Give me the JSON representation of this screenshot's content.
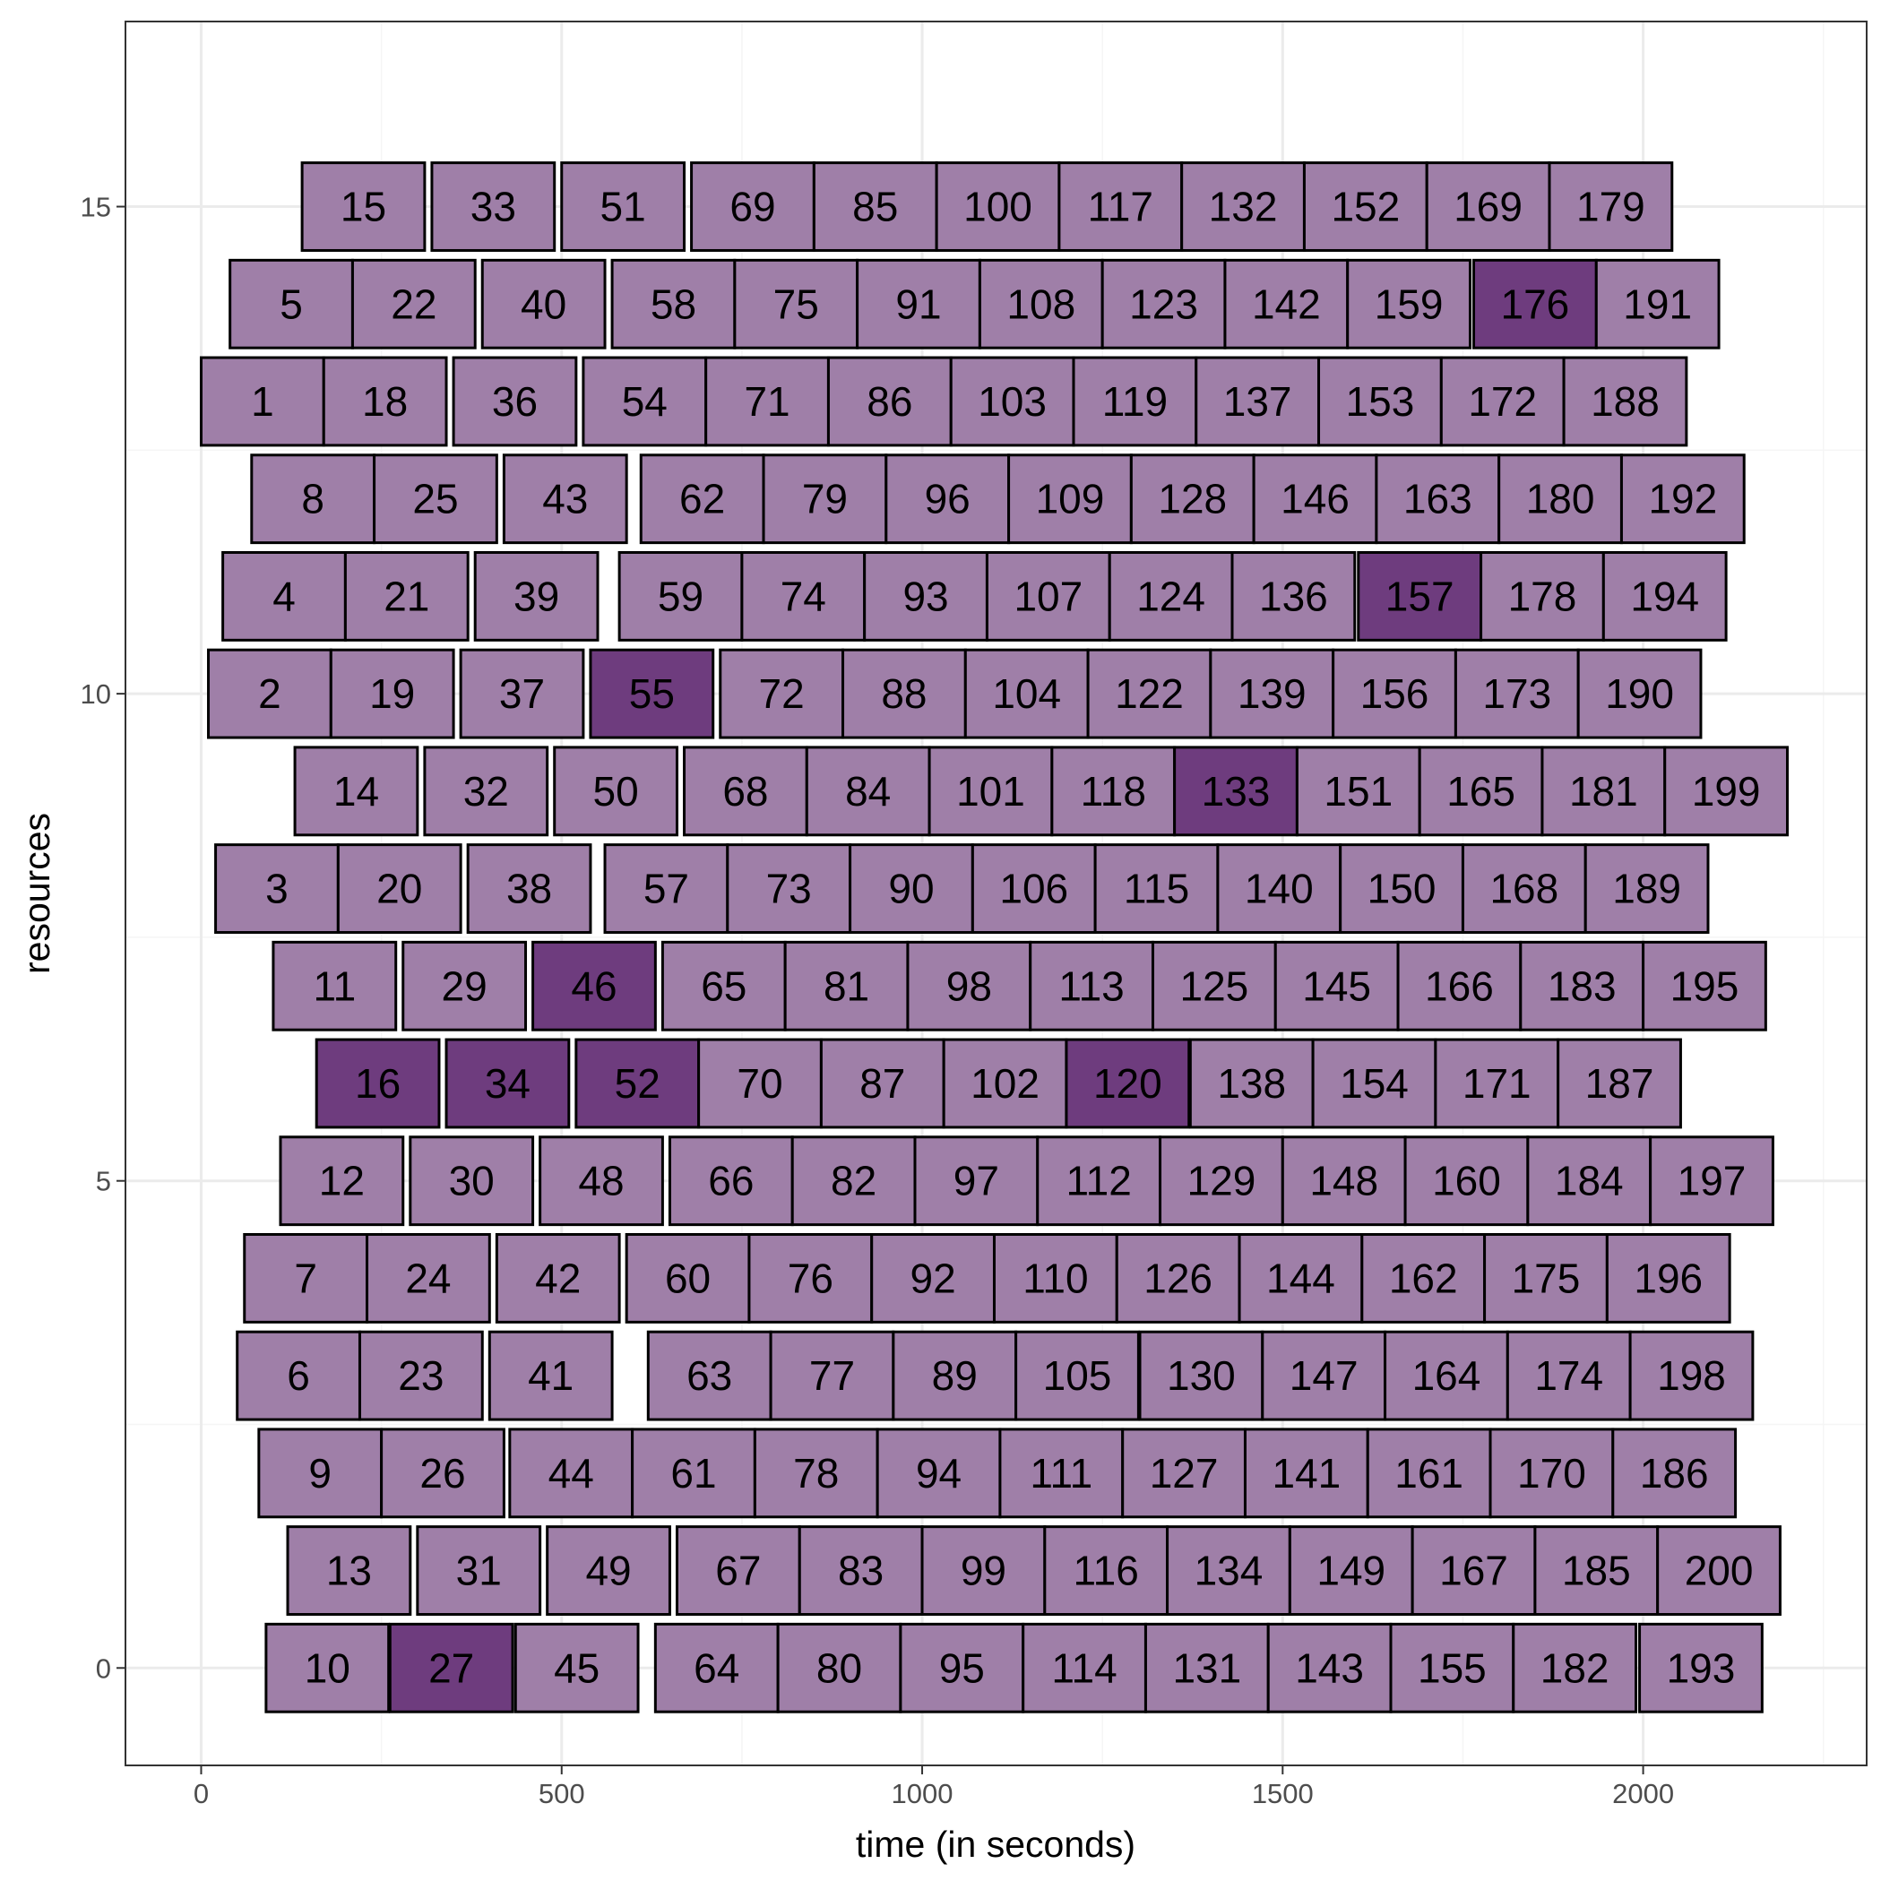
{
  "chart_data": {
    "type": "gantt",
    "xlabel": "time (in seconds)",
    "ylabel": "resources",
    "xlim": [
      -105,
      2310
    ],
    "ylim": [
      -1,
      16.9
    ],
    "xticks": [
      0,
      500,
      1000,
      1500,
      2000
    ],
    "yticks": [
      0,
      5,
      10,
      15
    ],
    "grid": true,
    "task_duration": 170,
    "colors": {
      "normal": "#9f7fa8",
      "highlight": "#6e3c7e",
      "border": "#000000",
      "panel_border": "#333333",
      "grid_major": "#ebebeb",
      "grid_minor": "#f5f5f5"
    },
    "tasks": [
      {
        "resource": 0,
        "id": 10,
        "start": 90
      },
      {
        "resource": 0,
        "id": 27,
        "start": 262,
        "highlight": true
      },
      {
        "resource": 0,
        "id": 45,
        "start": 436
      },
      {
        "resource": 0,
        "id": 64,
        "start": 630
      },
      {
        "resource": 0,
        "id": 80,
        "start": 800
      },
      {
        "resource": 0,
        "id": 95,
        "start": 970
      },
      {
        "resource": 0,
        "id": 114,
        "start": 1140
      },
      {
        "resource": 0,
        "id": 131,
        "start": 1310
      },
      {
        "resource": 0,
        "id": 143,
        "start": 1480
      },
      {
        "resource": 0,
        "id": 155,
        "start": 1650
      },
      {
        "resource": 0,
        "id": 182,
        "start": 1820
      },
      {
        "resource": 0,
        "id": 193,
        "start": 1995
      },
      {
        "resource": 1,
        "id": 13,
        "start": 120
      },
      {
        "resource": 1,
        "id": 31,
        "start": 300
      },
      {
        "resource": 1,
        "id": 49,
        "start": 480
      },
      {
        "resource": 1,
        "id": 67,
        "start": 660
      },
      {
        "resource": 1,
        "id": 83,
        "start": 830
      },
      {
        "resource": 1,
        "id": 99,
        "start": 1000
      },
      {
        "resource": 1,
        "id": 116,
        "start": 1170
      },
      {
        "resource": 1,
        "id": 134,
        "start": 1340
      },
      {
        "resource": 1,
        "id": 149,
        "start": 1510
      },
      {
        "resource": 1,
        "id": 167,
        "start": 1680
      },
      {
        "resource": 1,
        "id": 185,
        "start": 1850
      },
      {
        "resource": 1,
        "id": 200,
        "start": 2020
      },
      {
        "resource": 2,
        "id": 9,
        "start": 80
      },
      {
        "resource": 2,
        "id": 26,
        "start": 250
      },
      {
        "resource": 2,
        "id": 44,
        "start": 428
      },
      {
        "resource": 2,
        "id": 61,
        "start": 598
      },
      {
        "resource": 2,
        "id": 78,
        "start": 768
      },
      {
        "resource": 2,
        "id": 94,
        "start": 938
      },
      {
        "resource": 2,
        "id": 111,
        "start": 1108
      },
      {
        "resource": 2,
        "id": 127,
        "start": 1278
      },
      {
        "resource": 2,
        "id": 141,
        "start": 1448
      },
      {
        "resource": 2,
        "id": 161,
        "start": 1618
      },
      {
        "resource": 2,
        "id": 170,
        "start": 1788
      },
      {
        "resource": 2,
        "id": 186,
        "start": 1958
      },
      {
        "resource": 3,
        "id": 6,
        "start": 50
      },
      {
        "resource": 3,
        "id": 23,
        "start": 220
      },
      {
        "resource": 3,
        "id": 41,
        "start": 400
      },
      {
        "resource": 3,
        "id": 63,
        "start": 620
      },
      {
        "resource": 3,
        "id": 77,
        "start": 790
      },
      {
        "resource": 3,
        "id": 89,
        "start": 960
      },
      {
        "resource": 3,
        "id": 105,
        "start": 1130
      },
      {
        "resource": 3,
        "id": 130,
        "start": 1302
      },
      {
        "resource": 3,
        "id": 147,
        "start": 1472
      },
      {
        "resource": 3,
        "id": 164,
        "start": 1642
      },
      {
        "resource": 3,
        "id": 174,
        "start": 1812
      },
      {
        "resource": 3,
        "id": 198,
        "start": 1982
      },
      {
        "resource": 4,
        "id": 7,
        "start": 60
      },
      {
        "resource": 4,
        "id": 24,
        "start": 230
      },
      {
        "resource": 4,
        "id": 42,
        "start": 410
      },
      {
        "resource": 4,
        "id": 60,
        "start": 590
      },
      {
        "resource": 4,
        "id": 76,
        "start": 760
      },
      {
        "resource": 4,
        "id": 92,
        "start": 930
      },
      {
        "resource": 4,
        "id": 110,
        "start": 1100
      },
      {
        "resource": 4,
        "id": 126,
        "start": 1270
      },
      {
        "resource": 4,
        "id": 144,
        "start": 1440
      },
      {
        "resource": 4,
        "id": 162,
        "start": 1610
      },
      {
        "resource": 4,
        "id": 175,
        "start": 1780
      },
      {
        "resource": 4,
        "id": 196,
        "start": 1950
      },
      {
        "resource": 5,
        "id": 12,
        "start": 110
      },
      {
        "resource": 5,
        "id": 30,
        "start": 290
      },
      {
        "resource": 5,
        "id": 48,
        "start": 470
      },
      {
        "resource": 5,
        "id": 66,
        "start": 650
      },
      {
        "resource": 5,
        "id": 82,
        "start": 820
      },
      {
        "resource": 5,
        "id": 97,
        "start": 990
      },
      {
        "resource": 5,
        "id": 112,
        "start": 1160
      },
      {
        "resource": 5,
        "id": 129,
        "start": 1330
      },
      {
        "resource": 5,
        "id": 148,
        "start": 1500
      },
      {
        "resource": 5,
        "id": 160,
        "start": 1670
      },
      {
        "resource": 5,
        "id": 184,
        "start": 1840
      },
      {
        "resource": 5,
        "id": 197,
        "start": 2010
      },
      {
        "resource": 6,
        "id": 16,
        "start": 160,
        "highlight": true
      },
      {
        "resource": 6,
        "id": 34,
        "start": 340,
        "highlight": true
      },
      {
        "resource": 6,
        "id": 52,
        "start": 520,
        "highlight": true
      },
      {
        "resource": 6,
        "id": 70,
        "start": 690
      },
      {
        "resource": 6,
        "id": 87,
        "start": 860
      },
      {
        "resource": 6,
        "id": 102,
        "start": 1030
      },
      {
        "resource": 6,
        "id": 120,
        "start": 1200,
        "highlight": true
      },
      {
        "resource": 6,
        "id": 138,
        "start": 1372
      },
      {
        "resource": 6,
        "id": 154,
        "start": 1542
      },
      {
        "resource": 6,
        "id": 171,
        "start": 1712
      },
      {
        "resource": 6,
        "id": 187,
        "start": 1882
      },
      {
        "resource": 7,
        "id": 11,
        "start": 100
      },
      {
        "resource": 7,
        "id": 29,
        "start": 280
      },
      {
        "resource": 7,
        "id": 46,
        "start": 460,
        "highlight": true
      },
      {
        "resource": 7,
        "id": 65,
        "start": 640
      },
      {
        "resource": 7,
        "id": 81,
        "start": 810
      },
      {
        "resource": 7,
        "id": 98,
        "start": 980
      },
      {
        "resource": 7,
        "id": 113,
        "start": 1150
      },
      {
        "resource": 7,
        "id": 125,
        "start": 1320
      },
      {
        "resource": 7,
        "id": 145,
        "start": 1490
      },
      {
        "resource": 7,
        "id": 166,
        "start": 1660
      },
      {
        "resource": 7,
        "id": 183,
        "start": 1830
      },
      {
        "resource": 7,
        "id": 195,
        "start": 2000
      },
      {
        "resource": 8,
        "id": 3,
        "start": 20
      },
      {
        "resource": 8,
        "id": 20,
        "start": 190
      },
      {
        "resource": 8,
        "id": 38,
        "start": 370
      },
      {
        "resource": 8,
        "id": 57,
        "start": 560
      },
      {
        "resource": 8,
        "id": 73,
        "start": 730
      },
      {
        "resource": 8,
        "id": 90,
        "start": 900
      },
      {
        "resource": 8,
        "id": 106,
        "start": 1070
      },
      {
        "resource": 8,
        "id": 115,
        "start": 1240
      },
      {
        "resource": 8,
        "id": 140,
        "start": 1410
      },
      {
        "resource": 8,
        "id": 150,
        "start": 1580
      },
      {
        "resource": 8,
        "id": 168,
        "start": 1750
      },
      {
        "resource": 8,
        "id": 189,
        "start": 1920
      },
      {
        "resource": 9,
        "id": 14,
        "start": 130
      },
      {
        "resource": 9,
        "id": 32,
        "start": 310
      },
      {
        "resource": 9,
        "id": 50,
        "start": 490
      },
      {
        "resource": 9,
        "id": 68,
        "start": 670
      },
      {
        "resource": 9,
        "id": 84,
        "start": 840
      },
      {
        "resource": 9,
        "id": 101,
        "start": 1010
      },
      {
        "resource": 9,
        "id": 118,
        "start": 1180
      },
      {
        "resource": 9,
        "id": 133,
        "start": 1350,
        "highlight": true
      },
      {
        "resource": 9,
        "id": 151,
        "start": 1520
      },
      {
        "resource": 9,
        "id": 165,
        "start": 1690
      },
      {
        "resource": 9,
        "id": 181,
        "start": 1860
      },
      {
        "resource": 9,
        "id": 199,
        "start": 2030
      },
      {
        "resource": 10,
        "id": 2,
        "start": 10
      },
      {
        "resource": 10,
        "id": 19,
        "start": 180
      },
      {
        "resource": 10,
        "id": 37,
        "start": 360
      },
      {
        "resource": 10,
        "id": 55,
        "start": 540,
        "highlight": true
      },
      {
        "resource": 10,
        "id": 72,
        "start": 720
      },
      {
        "resource": 10,
        "id": 88,
        "start": 890
      },
      {
        "resource": 10,
        "id": 104,
        "start": 1060
      },
      {
        "resource": 10,
        "id": 122,
        "start": 1230
      },
      {
        "resource": 10,
        "id": 139,
        "start": 1400
      },
      {
        "resource": 10,
        "id": 156,
        "start": 1570
      },
      {
        "resource": 10,
        "id": 173,
        "start": 1740
      },
      {
        "resource": 10,
        "id": 190,
        "start": 1910
      },
      {
        "resource": 11,
        "id": 4,
        "start": 30
      },
      {
        "resource": 11,
        "id": 21,
        "start": 200
      },
      {
        "resource": 11,
        "id": 39,
        "start": 380
      },
      {
        "resource": 11,
        "id": 59,
        "start": 580
      },
      {
        "resource": 11,
        "id": 74,
        "start": 750
      },
      {
        "resource": 11,
        "id": 93,
        "start": 920
      },
      {
        "resource": 11,
        "id": 107,
        "start": 1090
      },
      {
        "resource": 11,
        "id": 124,
        "start": 1260
      },
      {
        "resource": 11,
        "id": 136,
        "start": 1430
      },
      {
        "resource": 11,
        "id": 157,
        "start": 1605,
        "highlight": true
      },
      {
        "resource": 11,
        "id": 178,
        "start": 1775
      },
      {
        "resource": 11,
        "id": 194,
        "start": 1945
      },
      {
        "resource": 12,
        "id": 8,
        "start": 70
      },
      {
        "resource": 12,
        "id": 25,
        "start": 240
      },
      {
        "resource": 12,
        "id": 43,
        "start": 420
      },
      {
        "resource": 12,
        "id": 62,
        "start": 610
      },
      {
        "resource": 12,
        "id": 79,
        "start": 780
      },
      {
        "resource": 12,
        "id": 96,
        "start": 950
      },
      {
        "resource": 12,
        "id": 109,
        "start": 1120
      },
      {
        "resource": 12,
        "id": 128,
        "start": 1290
      },
      {
        "resource": 12,
        "id": 146,
        "start": 1460
      },
      {
        "resource": 12,
        "id": 163,
        "start": 1630
      },
      {
        "resource": 12,
        "id": 180,
        "start": 1800
      },
      {
        "resource": 12,
        "id": 192,
        "start": 1970
      },
      {
        "resource": 13,
        "id": 1,
        "start": 0
      },
      {
        "resource": 13,
        "id": 18,
        "start": 170
      },
      {
        "resource": 13,
        "id": 36,
        "start": 350
      },
      {
        "resource": 13,
        "id": 54,
        "start": 530
      },
      {
        "resource": 13,
        "id": 71,
        "start": 700
      },
      {
        "resource": 13,
        "id": 86,
        "start": 870
      },
      {
        "resource": 13,
        "id": 103,
        "start": 1040
      },
      {
        "resource": 13,
        "id": 119,
        "start": 1210
      },
      {
        "resource": 13,
        "id": 137,
        "start": 1380
      },
      {
        "resource": 13,
        "id": 153,
        "start": 1550
      },
      {
        "resource": 13,
        "id": 172,
        "start": 1720
      },
      {
        "resource": 13,
        "id": 188,
        "start": 1890
      },
      {
        "resource": 14,
        "id": 5,
        "start": 40
      },
      {
        "resource": 14,
        "id": 22,
        "start": 210
      },
      {
        "resource": 14,
        "id": 40,
        "start": 390
      },
      {
        "resource": 14,
        "id": 58,
        "start": 570
      },
      {
        "resource": 14,
        "id": 75,
        "start": 740
      },
      {
        "resource": 14,
        "id": 91,
        "start": 910
      },
      {
        "resource": 14,
        "id": 108,
        "start": 1080
      },
      {
        "resource": 14,
        "id": 123,
        "start": 1250
      },
      {
        "resource": 14,
        "id": 142,
        "start": 1420
      },
      {
        "resource": 14,
        "id": 159,
        "start": 1590
      },
      {
        "resource": 14,
        "id": 176,
        "start": 1765,
        "highlight": true
      },
      {
        "resource": 14,
        "id": 191,
        "start": 1935
      },
      {
        "resource": 15,
        "id": 15,
        "start": 140
      },
      {
        "resource": 15,
        "id": 33,
        "start": 320
      },
      {
        "resource": 15,
        "id": 51,
        "start": 500
      },
      {
        "resource": 15,
        "id": 69,
        "start": 680
      },
      {
        "resource": 15,
        "id": 85,
        "start": 850
      },
      {
        "resource": 15,
        "id": 100,
        "start": 1020
      },
      {
        "resource": 15,
        "id": 117,
        "start": 1190
      },
      {
        "resource": 15,
        "id": 132,
        "start": 1360
      },
      {
        "resource": 15,
        "id": 152,
        "start": 1530
      },
      {
        "resource": 15,
        "id": 169,
        "start": 1700
      },
      {
        "resource": 15,
        "id": 179,
        "start": 1870
      }
    ]
  }
}
